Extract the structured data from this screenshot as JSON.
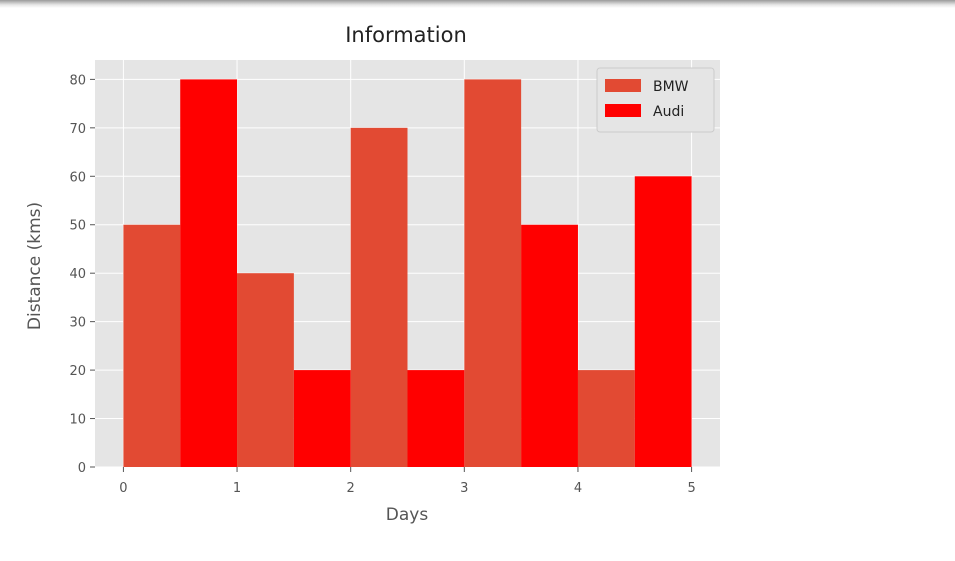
{
  "chart_data": {
    "type": "bar",
    "title": "Information",
    "xlabel": "Days",
    "ylabel": "Distance (kms)",
    "xlim": [
      -0.25,
      5.25
    ],
    "ylim": [
      0,
      84
    ],
    "xticks": [
      0,
      1,
      2,
      3,
      4,
      5
    ],
    "yticks": [
      0,
      10,
      20,
      30,
      40,
      50,
      60,
      70,
      80
    ],
    "bar_width": 0.5,
    "grid": true,
    "legend_position": "top-right",
    "series": [
      {
        "name": "BMW",
        "color": "#e24a33",
        "x": [
          0.25,
          1.25,
          2.25,
          3.25,
          4.25
        ],
        "values": [
          50,
          40,
          70,
          80,
          20
        ]
      },
      {
        "name": "Audi",
        "color": "#ff0000",
        "x": [
          0.75,
          1.75,
          2.75,
          3.75,
          4.75
        ],
        "values": [
          80,
          20,
          20,
          50,
          60
        ]
      }
    ],
    "style": {
      "plot_background": "#e5e5e5",
      "grid_color": "#ffffff",
      "text_color": "#555555"
    }
  }
}
